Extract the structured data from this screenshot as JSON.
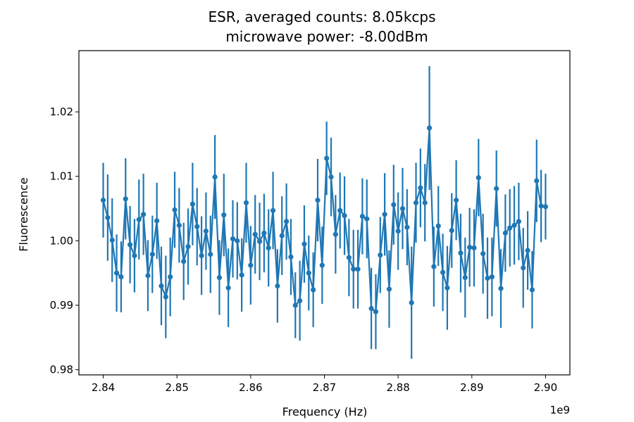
{
  "chart_data": {
    "type": "scatter",
    "title": [
      "ESR, averaged counts: 8.05kcps",
      "microwave power: -8.00dBm"
    ],
    "xlabel": "Frequency (Hz)",
    "ylabel": "Fluorescence",
    "x_offset_text": "1e9",
    "xlim": [
      2.8367,
      2.9033
    ],
    "ylim": [
      0.9792,
      1.0295
    ],
    "x_ticks": [
      2.84,
      2.85,
      2.86,
      2.87,
      2.88,
      2.89,
      2.9
    ],
    "x_tick_labels": [
      "2.84",
      "2.85",
      "2.86",
      "2.87",
      "2.88",
      "2.89",
      "2.90"
    ],
    "y_ticks": [
      0.98,
      0.99,
      1.0,
      1.01,
      1.02
    ],
    "y_tick_labels": [
      "0.98",
      "0.99",
      "1.00",
      "1.01",
      "1.02"
    ],
    "grid": false,
    "color": "#1f77b4",
    "series": [
      {
        "x_start": 2.84,
        "x_end": 2.9,
        "values": [
          1.0063,
          1.0036,
          1.0001,
          0.995,
          0.9944,
          1.0065,
          0.9994,
          0.9977,
          1.0033,
          1.0041,
          0.9946,
          0.9979,
          1.0031,
          0.993,
          0.9913,
          0.9944,
          1.0048,
          1.0024,
          0.9968,
          0.9991,
          1.0057,
          1.0022,
          0.9977,
          1.0015,
          0.9979,
          1.0099,
          0.9943,
          1.004,
          0.9927,
          1.0003,
          1.0,
          0.9947,
          1.0059,
          0.9962,
          1.001,
          0.9999,
          1.0012,
          0.9989,
          1.0047,
          0.993,
          1.0008,
          1.003,
          0.9975,
          0.99,
          0.9907,
          0.9995,
          0.995,
          0.9924,
          1.0063,
          0.9962,
          1.0128,
          1.0099,
          1.001,
          1.0047,
          1.0039,
          0.9974,
          0.9956,
          0.9956,
          1.0038,
          1.0034,
          0.9895,
          0.989,
          0.9978,
          1.0041,
          0.9925,
          1.0056,
          1.0015,
          1.005,
          1.0021,
          0.9904,
          1.0059,
          1.0082,
          1.0059,
          1.0175,
          0.996,
          1.0023,
          0.9951,
          0.9927,
          1.0016,
          1.0063,
          0.9981,
          0.9943,
          0.999,
          0.9989,
          1.0098,
          0.998,
          0.9942,
          0.9944,
          1.0081,
          0.9926,
          1.0012,
          1.002,
          1.0024,
          1.003,
          0.9958,
          0.9985,
          0.9924,
          1.0093,
          1.0054,
          1.0053
        ],
        "errors": [
          0.0058,
          0.0067,
          0.0065,
          0.006,
          0.0055,
          0.0063,
          0.006,
          0.0057,
          0.0062,
          0.0063,
          0.0055,
          0.006,
          0.0059,
          0.0061,
          0.0064,
          0.0061,
          0.0059,
          0.0058,
          0.006,
          0.0059,
          0.0064,
          0.006,
          0.0061,
          0.006,
          0.006,
          0.0065,
          0.0058,
          0.0064,
          0.0061,
          0.006,
          0.006,
          0.0057,
          0.0062,
          0.0061,
          0.0061,
          0.006,
          0.0061,
          0.006,
          0.006,
          0.0057,
          0.0061,
          0.0059,
          0.0059,
          0.0051,
          0.0062,
          0.006,
          0.0058,
          0.0058,
          0.0064,
          0.006,
          0.0057,
          0.0061,
          0.0061,
          0.0059,
          0.0061,
          0.006,
          0.0061,
          0.0061,
          0.0059,
          0.0061,
          0.0063,
          0.0058,
          0.0059,
          0.0064,
          0.006,
          0.0062,
          0.006,
          0.0063,
          0.0059,
          0.0087,
          0.0062,
          0.0061,
          0.006,
          0.0096,
          0.0062,
          0.0062,
          0.006,
          0.0065,
          0.0058,
          0.0062,
          0.0061,
          0.0062,
          0.0061,
          0.006,
          0.006,
          0.0062,
          0.0063,
          0.0061,
          0.0059,
          0.0061,
          0.006,
          0.006,
          0.0061,
          0.006,
          0.0062,
          0.0061,
          0.006,
          0.0064,
          0.0056,
          0.0051
        ]
      }
    ]
  }
}
